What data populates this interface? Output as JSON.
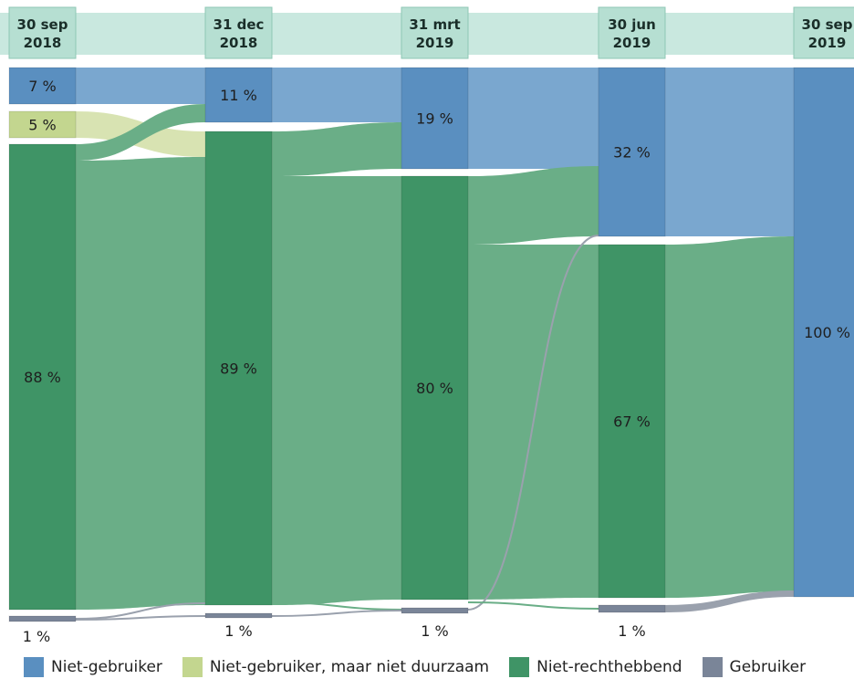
{
  "chart_data": {
    "type": "sankey",
    "columns": [
      {
        "label_line1": "30 sep",
        "label_line2": "2018"
      },
      {
        "label_line1": "31 dec",
        "label_line2": "2018"
      },
      {
        "label_line1": "31 mrt",
        "label_line2": "2019"
      },
      {
        "label_line1": "30 jun",
        "label_line2": "2019"
      },
      {
        "label_line1": "30 sep",
        "label_line2": "2019"
      }
    ],
    "categories": [
      "Niet-gebruiker",
      "Niet-gebruiker, maar niet duurzaam",
      "Niet-rechthebbend",
      "Gebruiker"
    ],
    "nodes": [
      [
        {
          "category": "Niet-gebruiker",
          "value": 7,
          "label": "7 %"
        },
        {
          "category": "Niet-gebruiker, maar niet duurzaam",
          "value": 5,
          "label": "5 %"
        },
        {
          "category": "Niet-rechthebbend",
          "value": 88,
          "label": "88 %"
        },
        {
          "category": "Gebruiker",
          "value": 1,
          "label": "1 %"
        }
      ],
      [
        {
          "category": "Niet-gebruiker",
          "value": 11,
          "label": "11 %"
        },
        {
          "category": "Niet-rechthebbend",
          "value": 89,
          "label": "89 %"
        },
        {
          "category": "Gebruiker",
          "value": 1,
          "label": "1 %"
        }
      ],
      [
        {
          "category": "Niet-gebruiker",
          "value": 19,
          "label": "19 %"
        },
        {
          "category": "Niet-rechthebbend",
          "value": 80,
          "label": "80 %"
        },
        {
          "category": "Gebruiker",
          "value": 1,
          "label": "1 %"
        }
      ],
      [
        {
          "category": "Niet-gebruiker",
          "value": 32,
          "label": "32 %"
        },
        {
          "category": "Niet-rechthebbend",
          "value": 67,
          "label": "67 %"
        },
        {
          "category": "Gebruiker",
          "value": 1,
          "label": "1 %"
        }
      ],
      [
        {
          "category": "Niet-gebruiker",
          "value": 100,
          "label": "100 %"
        }
      ]
    ]
  },
  "legend": [
    {
      "label": "Niet-gebruiker",
      "color": "#5a8fc0"
    },
    {
      "label": "Niet-gebruiker, maar niet duurzaam",
      "color": "#c3d68f"
    },
    {
      "label": "Niet-rechthebbend",
      "color": "#3f9466"
    },
    {
      "label": "Gebruiker",
      "color": "#7a8598"
    }
  ],
  "colors": {
    "header_band": "#c9e8df",
    "header_box": "#b6dfd2",
    "header_border": "#8fc7b4",
    "flow_blue": "#7aa7cf",
    "flow_green": "#6aae87",
    "flow_lime": "#d8e3b2",
    "flow_gray": "#9aa1ad"
  }
}
